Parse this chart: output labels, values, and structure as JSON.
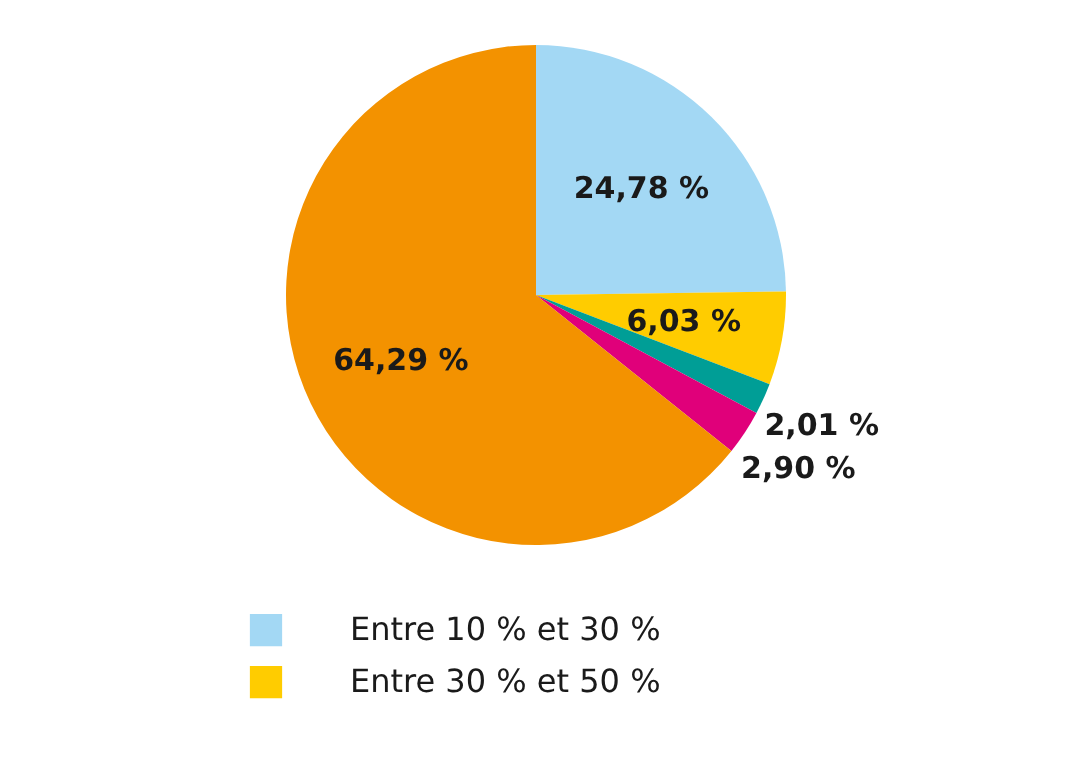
{
  "chart_data": {
    "type": "pie",
    "categories": [
      "Entre 10 % et 30 %",
      "Entre 30 % et 50 %",
      null,
      null,
      null
    ],
    "values": [
      24.78,
      6.03,
      2.01,
      2.9,
      64.29
    ],
    "colors": [
      "#a3d8f4",
      "#ffcc00",
      "#009e96",
      "#e0007a",
      "#f39200"
    ],
    "value_labels": [
      "24,78 %",
      "6,03 %",
      "2,01 %",
      "2,90 %",
      "64,29 %"
    ],
    "legend": "bottom"
  }
}
